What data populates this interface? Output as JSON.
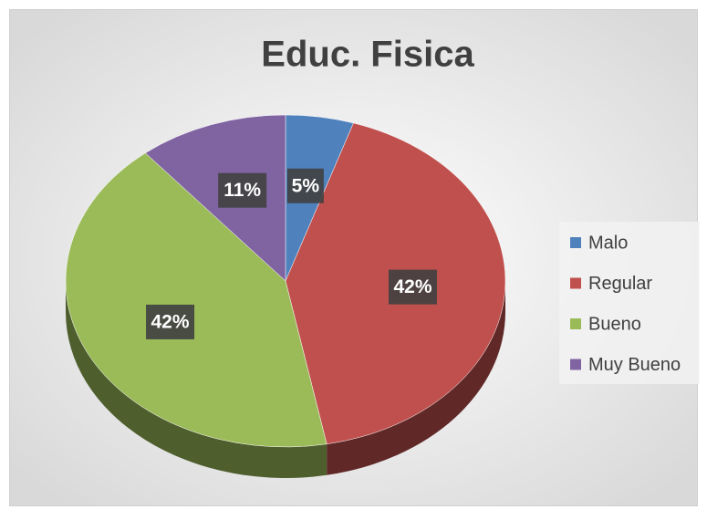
{
  "chart_data": {
    "type": "pie",
    "title": "Educ. Fisica",
    "categories": [
      "Malo",
      "Regular",
      "Bueno",
      "Muy Bueno"
    ],
    "values": [
      5,
      42,
      42,
      11
    ],
    "value_labels": [
      "5%",
      "42%",
      "42%",
      "11%"
    ],
    "colors": [
      "#4f81bd",
      "#c0504d",
      "#9bbb59",
      "#8064a2"
    ],
    "legend": "right"
  }
}
